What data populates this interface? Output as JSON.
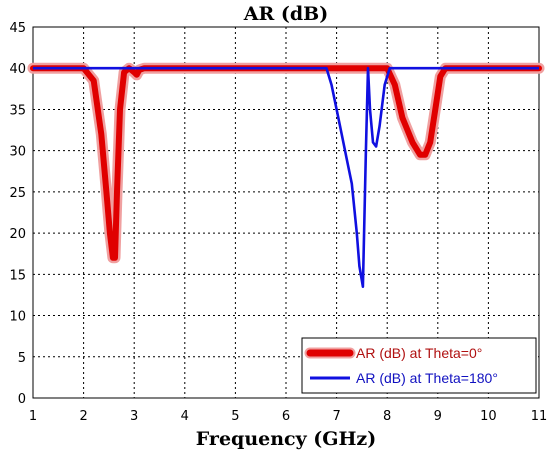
{
  "chart_data": {
    "type": "line",
    "title": "AR (dB)",
    "xlabel": "Frequency (GHz)",
    "ylabel": "",
    "xlim": [
      1,
      11
    ],
    "ylim": [
      0,
      45
    ],
    "xticks": [
      1,
      2,
      3,
      4,
      5,
      6,
      7,
      8,
      9,
      10,
      11
    ],
    "yticks": [
      0,
      5,
      10,
      15,
      20,
      25,
      30,
      35,
      40,
      45
    ],
    "grid": true,
    "legend_position": "bottom-right",
    "series": [
      {
        "name": "AR (dB) at Theta=0°",
        "color": "#e00000",
        "halo_color": "#f0a0a0",
        "x": [
          1,
          2.0,
          2.2,
          2.35,
          2.45,
          2.52,
          2.58,
          2.62,
          2.66,
          2.72,
          2.8,
          2.9,
          3.0,
          3.05,
          3.1,
          3.2,
          6.8,
          7.1,
          7.5,
          8.0,
          8.15,
          8.3,
          8.5,
          8.65,
          8.75,
          8.85,
          8.95,
          9.05,
          9.15,
          11
        ],
        "y": [
          40,
          40,
          38.5,
          32,
          25,
          20,
          17,
          17,
          25,
          35,
          39.5,
          40,
          39.5,
          39.2,
          39.8,
          40,
          40,
          40,
          40,
          40,
          38,
          34,
          31,
          29.5,
          29.5,
          31,
          35,
          39,
          40,
          40
        ]
      },
      {
        "name": "AR (dB) at Theta=180°",
        "color": "#1010e0",
        "x": [
          1,
          6.8,
          6.9,
          7.0,
          7.1,
          7.2,
          7.3,
          7.4,
          7.45,
          7.52,
          7.58,
          7.62,
          7.66,
          7.72,
          7.78,
          7.85,
          7.95,
          8.05,
          8.2,
          11
        ],
        "y": [
          40,
          40,
          38,
          35,
          32,
          29,
          26,
          20,
          16,
          13.5,
          30,
          40,
          35,
          31,
          30.5,
          33,
          38,
          40,
          40,
          40
        ]
      }
    ]
  }
}
